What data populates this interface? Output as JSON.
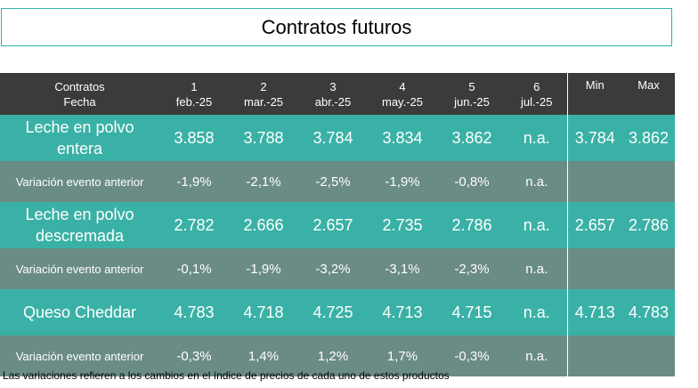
{
  "title": "Contratos futuros",
  "header": {
    "row_label_top": "Contratos",
    "row_label_bottom": "Fecha",
    "contracts": [
      {
        "num": "1",
        "date": "feb.-25"
      },
      {
        "num": "2",
        "date": "mar.-25"
      },
      {
        "num": "3",
        "date": "abr.-25"
      },
      {
        "num": "4",
        "date": "may.-25"
      },
      {
        "num": "5",
        "date": "jun.-25"
      },
      {
        "num": "6",
        "date": "jul.-25"
      }
    ],
    "min_label": "Min",
    "max_label": "Max"
  },
  "rows": [
    {
      "type": "main",
      "label_line1": "Leche en polvo",
      "label_line2": "entera",
      "values": [
        "3.858",
        "3.788",
        "3.784",
        "3.834",
        "3.862",
        "n.a."
      ],
      "min": "3.784",
      "max": "3.862"
    },
    {
      "type": "var",
      "label": "Variación evento anterior",
      "values": [
        "-1,9%",
        "-2,1%",
        "-2,5%",
        "-1,9%",
        "-0,8%",
        "n.a."
      ]
    },
    {
      "type": "main",
      "label_line1": "Leche en polvo",
      "label_line2": "descremada",
      "values": [
        "2.782",
        "2.666",
        "2.657",
        "2.735",
        "2.786",
        "n.a."
      ],
      "min": "2.657",
      "max": "2.786"
    },
    {
      "type": "var",
      "label": "Variación evento anterior",
      "values": [
        "-0,1%",
        "-1,9%",
        "-3,2%",
        "-3,1%",
        "-2,3%",
        "n.a."
      ]
    },
    {
      "type": "main",
      "label_line1": "Queso Cheddar",
      "label_line2": "",
      "values": [
        "4.783",
        "4.718",
        "4.725",
        "4.713",
        "4.715",
        "n.a."
      ],
      "min": "4.713",
      "max": "4.783"
    },
    {
      "type": "var",
      "label": "Variación evento anterior",
      "values": [
        "-0,3%",
        "1,4%",
        "1,2%",
        "1,7%",
        "-0,3%",
        "n.a."
      ]
    }
  ],
  "footnote": "Las variaciones refieren a los cambios en el índice de precios de cada uno de estos productos",
  "colors": {
    "header_bg": "#3b3b3b",
    "main_row_bg": "#3ab1a6",
    "var_row_bg": "#6a8c85",
    "title_border": "#2fb3a8"
  }
}
